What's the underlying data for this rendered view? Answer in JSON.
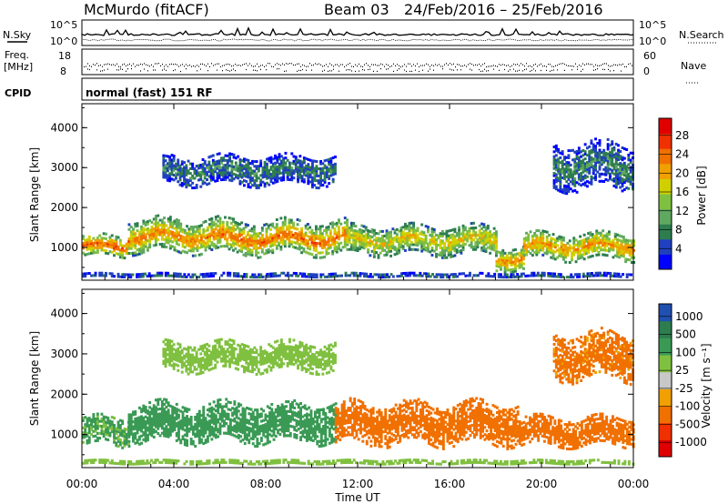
{
  "header": {
    "title": "McMurdo (fitACF)",
    "beam": "Beam 03",
    "date_range": "24/Feb/2016 – 25/Feb/2016"
  },
  "status_panels": {
    "nsky_label": "N.Sky",
    "nsearch_label": "N.Search",
    "noise_ticks": [
      "10^5",
      "10^0"
    ],
    "freq_label": "Freq.",
    "freq_unit": "[MHz]",
    "freq_ticks": [
      "18",
      "8"
    ],
    "nave_label": "Nave",
    "nave_ticks": [
      "60",
      "0"
    ],
    "cpid_label": "CPID",
    "cpid_text": "normal (fast) 151 RF"
  },
  "colors": {
    "power": [
      "#0000ff",
      "#2040c0",
      "#2e7d4f",
      "#5fa860",
      "#80c040",
      "#d0d000",
      "#f0a000",
      "#f07000",
      "#f03000",
      "#e00000"
    ],
    "velocity": [
      "#e00000",
      "#f03000",
      "#f07000",
      "#f0a000",
      "#c8c8c8",
      "#80c040",
      "#3a9a55",
      "#2e7d4f",
      "#2050b0"
    ],
    "frame": "#000000"
  },
  "chart_data": [
    {
      "type": "heatmap",
      "title": "",
      "xlabel": "Time UT",
      "ylabel": "Slant Range [km]",
      "x_ticks": [
        "00:00",
        "04:00",
        "08:00",
        "12:00",
        "16:00",
        "20:00",
        "00:00"
      ],
      "y_ticks": [
        1000,
        2000,
        3000,
        4000
      ],
      "xlim": [
        0,
        24
      ],
      "ylim": [
        180,
        4600
      ],
      "colorbar": {
        "label": "Power [dB]",
        "ticks": [
          "4",
          "8",
          "12",
          "16",
          "20",
          "24",
          "28"
        ],
        "range": [
          0,
          30
        ]
      },
      "echo_bands": [
        {
          "t": [
            0.0,
            2.0
          ],
          "center": 1000,
          "half": 220,
          "value": 24
        },
        {
          "t": [
            2.0,
            6.0
          ],
          "center": 1250,
          "half": 330,
          "value": 22
        },
        {
          "t": [
            6.0,
            11.5
          ],
          "center": 1200,
          "half": 330,
          "value": 23
        },
        {
          "t": [
            11.5,
            18.0
          ],
          "center": 1150,
          "half": 300,
          "value": 18
        },
        {
          "t": [
            18.0,
            19.2
          ],
          "center": 700,
          "half": 250,
          "value": 22
        },
        {
          "t": [
            19.2,
            24.0
          ],
          "center": 1000,
          "half": 280,
          "value": 21
        },
        {
          "t": [
            3.5,
            11.0
          ],
          "center": 2900,
          "half": 300,
          "value": 8
        },
        {
          "t": [
            20.5,
            24.0
          ],
          "center": 3000,
          "half": 450,
          "value": 8
        },
        {
          "t": [
            0.0,
            24.0
          ],
          "center": 270,
          "half": 60,
          "value": 6
        }
      ]
    },
    {
      "type": "heatmap",
      "title": "",
      "xlabel": "Time UT",
      "ylabel": "Slant Range [km]",
      "x_ticks": [
        "00:00",
        "04:00",
        "08:00",
        "12:00",
        "16:00",
        "20:00",
        "00:00"
      ],
      "y_ticks": [
        1000,
        2000,
        3000,
        4000
      ],
      "xlim": [
        0,
        24
      ],
      "ylim": [
        180,
        4600
      ],
      "colorbar": {
        "label": "Velocity [m s⁻¹]",
        "ticks": [
          "1000",
          "500",
          "100",
          "25",
          "-25",
          "-100",
          "-500",
          "-1000"
        ],
        "range": [
          -1200,
          1200
        ]
      },
      "echo_bands": [
        {
          "t": [
            0.0,
            2.0
          ],
          "center": 1050,
          "half": 300,
          "value": 120
        },
        {
          "t": [
            2.0,
            11.0
          ],
          "center": 1250,
          "half": 380,
          "value": 250
        },
        {
          "t": [
            11.0,
            19.0
          ],
          "center": 1250,
          "half": 420,
          "value": -200
        },
        {
          "t": [
            19.0,
            24.0
          ],
          "center": 1050,
          "half": 300,
          "value": -200
        },
        {
          "t": [
            20.5,
            24.0
          ],
          "center": 2900,
          "half": 450,
          "value": -150
        },
        {
          "t": [
            3.5,
            11.0
          ],
          "center": 2900,
          "half": 300,
          "value": 60
        },
        {
          "t": [
            0.0,
            24.0
          ],
          "center": 280,
          "half": 60,
          "value": 50
        }
      ]
    }
  ]
}
